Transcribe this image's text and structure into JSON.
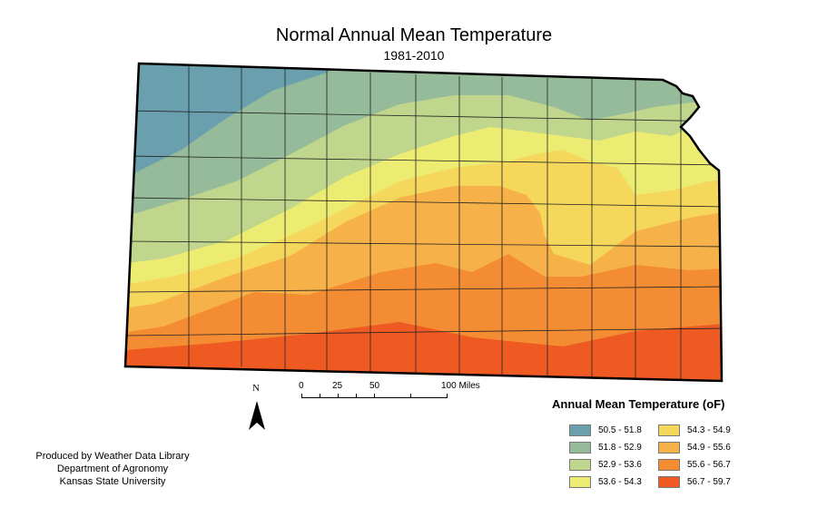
{
  "title": "Normal Annual Mean Temperature",
  "subtitle": "1981-2010",
  "north_label": "N",
  "scale_bar": {
    "labels": [
      "0",
      "25",
      "50",
      "100 Miles"
    ]
  },
  "credits": [
    "Produced by Weather Data Library",
    "Department of Agronomy",
    "Kansas State University"
  ],
  "legend": {
    "title": "Annual Mean Temperature (oF)",
    "items": [
      {
        "label": "50.5 - 51.8",
        "color": "#6a9fae"
      },
      {
        "label": "51.8 - 52.9",
        "color": "#96bb9b"
      },
      {
        "label": "52.9 - 53.6",
        "color": "#c0d68c"
      },
      {
        "label": "53.6 - 54.3",
        "color": "#ecec72"
      },
      {
        "label": "54.3 - 54.9",
        "color": "#f5d75b"
      },
      {
        "label": "54.9 - 55.6",
        "color": "#f6b248"
      },
      {
        "label": "55.6 - 56.7",
        "color": "#f48c34"
      },
      {
        "label": "56.7 - 59.7",
        "color": "#ee5a22"
      }
    ]
  }
}
